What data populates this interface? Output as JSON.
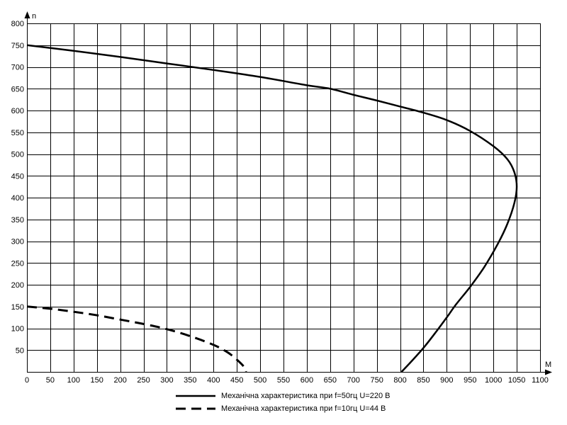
{
  "chart_data": {
    "type": "line",
    "xlabel": "M",
    "ylabel": "n",
    "xlim": [
      0,
      1100
    ],
    "ylim": [
      0,
      800
    ],
    "xticks": [
      0,
      50,
      100,
      150,
      200,
      250,
      300,
      350,
      400,
      450,
      500,
      550,
      600,
      650,
      700,
      750,
      800,
      850,
      900,
      950,
      1000,
      1050,
      1100
    ],
    "yticks": [
      0,
      50,
      100,
      150,
      200,
      250,
      300,
      350,
      400,
      450,
      500,
      550,
      600,
      650,
      700,
      750,
      800
    ],
    "grid": true,
    "legend_position": "bottom",
    "series": [
      {
        "name": "Механічна характеристика при f=50гц U=220 В",
        "style": "solid",
        "color": "#000000",
        "points": [
          [
            0,
            750
          ],
          [
            100,
            737
          ],
          [
            200,
            723
          ],
          [
            300,
            708
          ],
          [
            400,
            693
          ],
          [
            500,
            677
          ],
          [
            600,
            658
          ],
          [
            650,
            650
          ],
          [
            700,
            636
          ],
          [
            750,
            623
          ],
          [
            800,
            609
          ],
          [
            850,
            595
          ],
          [
            900,
            578
          ],
          [
            950,
            553
          ],
          [
            1000,
            518
          ],
          [
            1030,
            488
          ],
          [
            1045,
            458
          ],
          [
            1050,
            425
          ],
          [
            1045,
            388
          ],
          [
            1030,
            340
          ],
          [
            1010,
            295
          ],
          [
            980,
            240
          ],
          [
            950,
            195
          ],
          [
            920,
            155
          ],
          [
            900,
            125
          ],
          [
            870,
            82
          ],
          [
            850,
            55
          ],
          [
            825,
            25
          ],
          [
            803,
            0
          ]
        ]
      },
      {
        "name": "Механічна характеристика при f=10гц U=44 В",
        "style": "dashed",
        "color": "#000000",
        "points": [
          [
            0,
            150
          ],
          [
            50,
            145
          ],
          [
            100,
            138
          ],
          [
            150,
            130
          ],
          [
            200,
            120
          ],
          [
            250,
            110
          ],
          [
            300,
            98
          ],
          [
            350,
            82
          ],
          [
            400,
            62
          ],
          [
            430,
            45
          ],
          [
            450,
            28
          ],
          [
            465,
            12
          ],
          [
            470,
            0
          ]
        ]
      }
    ]
  }
}
